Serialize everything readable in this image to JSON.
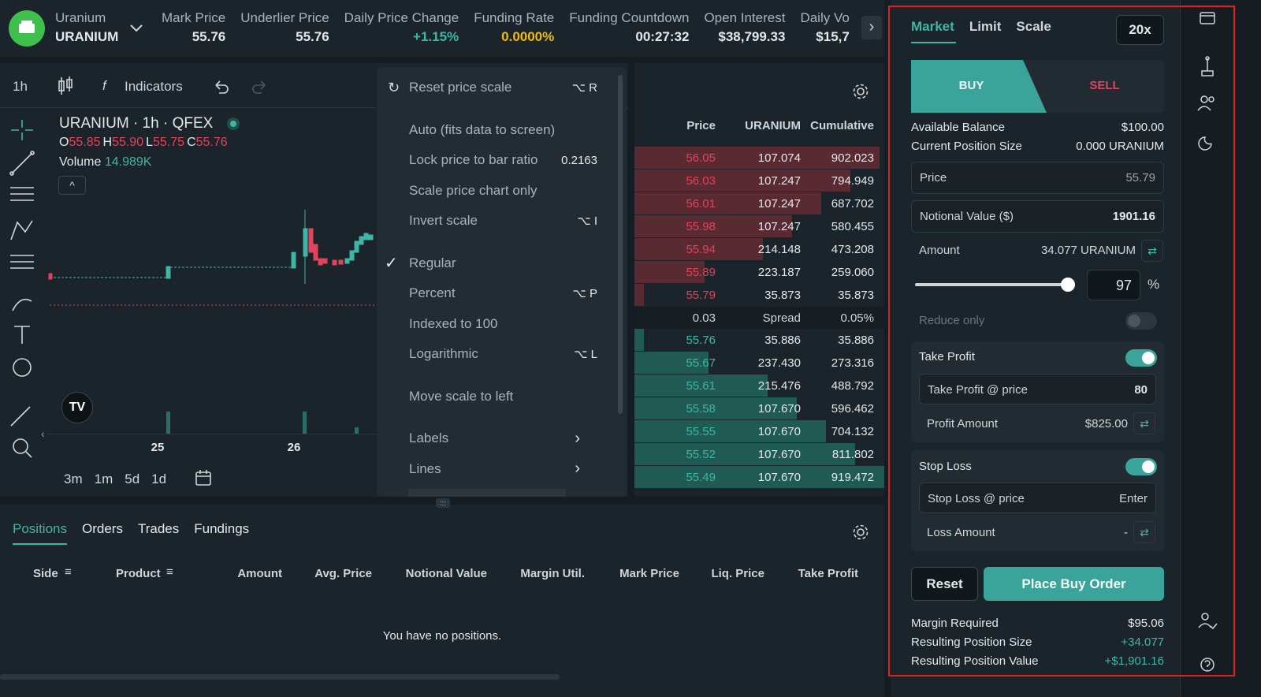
{
  "header": {
    "name": "Uranium",
    "symbol": "URANIUM",
    "stats": [
      {
        "label": "Mark Price",
        "value": "55.76"
      },
      {
        "label": "Underlier Price",
        "value": "55.76"
      },
      {
        "label": "Daily Price Change",
        "value": "+1.15%",
        "color": "#3fb5a6"
      },
      {
        "label": "Funding Rate",
        "value": "0.0000%",
        "color": "#f0b90b"
      },
      {
        "label": "Funding Countdown",
        "value": "00:27:32"
      },
      {
        "label": "Open Interest",
        "value": "$38,799.33"
      },
      {
        "label": "Daily Vo",
        "value": "$15,7"
      }
    ]
  },
  "toolbar": {
    "interval": "1h",
    "indicators": "Indicators"
  },
  "legend": {
    "title": "URANIUM · 1h · QFEX",
    "ohlc": [
      {
        "key": "O",
        "value": "55.85"
      },
      {
        "key": "H",
        "value": "55.90"
      },
      {
        "key": "L",
        "value": "55.75"
      },
      {
        "key": "C",
        "value": "55.76"
      }
    ],
    "volume_label": "Volume",
    "volume": "14.989K"
  },
  "x_labels": [
    "25",
    "26"
  ],
  "timeframes": [
    "3m",
    "1m",
    "5d",
    "1d"
  ],
  "scale_menu": {
    "items": [
      {
        "label": "Reset price scale",
        "shortcut": "⌥ R"
      },
      {
        "label": "Auto (fits data to screen)"
      },
      {
        "label": "Lock price to bar ratio",
        "shortcut": "0.2163"
      },
      {
        "label": "Scale price chart only"
      },
      {
        "label": "Invert scale",
        "shortcut": "⌥ I"
      },
      {
        "label": "Regular",
        "checked": true
      },
      {
        "label": "Percent",
        "shortcut": "⌥ P"
      },
      {
        "label": "Indexed to 100"
      },
      {
        "label": "Logarithmic",
        "shortcut": "⌥ L"
      },
      {
        "label": "Move scale to left"
      },
      {
        "label": "Labels",
        "submenu": true
      },
      {
        "label": "Lines",
        "submenu": true
      }
    ]
  },
  "order_book": {
    "headers": [
      "Price",
      "URANIUM",
      "Cumulative"
    ],
    "asks": [
      [
        "56.05",
        "107.074",
        "902.023"
      ],
      [
        "56.03",
        "107.247",
        "794.949"
      ],
      [
        "56.01",
        "107.247",
        "687.702"
      ],
      [
        "55.98",
        "107.247",
        "580.455"
      ],
      [
        "55.94",
        "214.148",
        "473.208"
      ],
      [
        "55.89",
        "223.187",
        "259.060"
      ],
      [
        "55.79",
        "35.873",
        "35.873"
      ]
    ],
    "spread": [
      "0.03",
      "Spread",
      "0.05%"
    ],
    "bids": [
      [
        "55.76",
        "35.886",
        "35.886"
      ],
      [
        "55.67",
        "237.430",
        "273.316"
      ],
      [
        "55.61",
        "215.476",
        "488.792"
      ],
      [
        "55.58",
        "107.670",
        "596.462"
      ],
      [
        "55.55",
        "107.670",
        "704.132"
      ],
      [
        "55.52",
        "107.670",
        "811.802"
      ],
      [
        "55.49",
        "107.670",
        "919.472"
      ]
    ]
  },
  "bottom": {
    "tabs": [
      "Positions",
      "Orders",
      "Trades",
      "Fundings"
    ],
    "columns": [
      "Side",
      "Product",
      "Amount",
      "Avg. Price",
      "Notional Value",
      "Margin Util.",
      "Mark Price",
      "Liq. Price",
      "Take Profit"
    ],
    "empty": "You have no positions."
  },
  "order_form": {
    "tabs": [
      "Market",
      "Limit",
      "Scale"
    ],
    "leverage": "20x",
    "buy": "BUY",
    "sell": "SELL",
    "info": [
      {
        "label": "Available Balance",
        "value": "$100.00"
      },
      {
        "label": "Current Position Size",
        "value": "0.000 URANIUM"
      }
    ],
    "price": {
      "label": "Price",
      "value": "55.79"
    },
    "notional": {
      "label": "Notional Value ($)",
      "value": "1901.16"
    },
    "amount": {
      "label": "Amount",
      "value": "34.077 URANIUM"
    },
    "percent": 97,
    "percent_unit": "%",
    "reduce_only": "Reduce only",
    "take_profit": {
      "label": "Take Profit",
      "price_label": "Take Profit @ price",
      "price": "80",
      "amount_label": "Profit Amount",
      "amount": "$825.00"
    },
    "stop_loss": {
      "label": "Stop Loss",
      "price_label": "Stop Loss @ price",
      "price": "Enter",
      "amount_label": "Loss Amount",
      "amount": "-"
    },
    "reset": "Reset",
    "submit": "Place Buy Order",
    "summary": [
      {
        "label": "Margin Required",
        "value": "$95.06"
      },
      {
        "label": "Resulting Position Size",
        "value": "+34.077",
        "color": "#3fb5a6"
      },
      {
        "label": "Resulting Position Value",
        "value": "+$1,901.16",
        "color": "#3fb5a6"
      }
    ]
  }
}
